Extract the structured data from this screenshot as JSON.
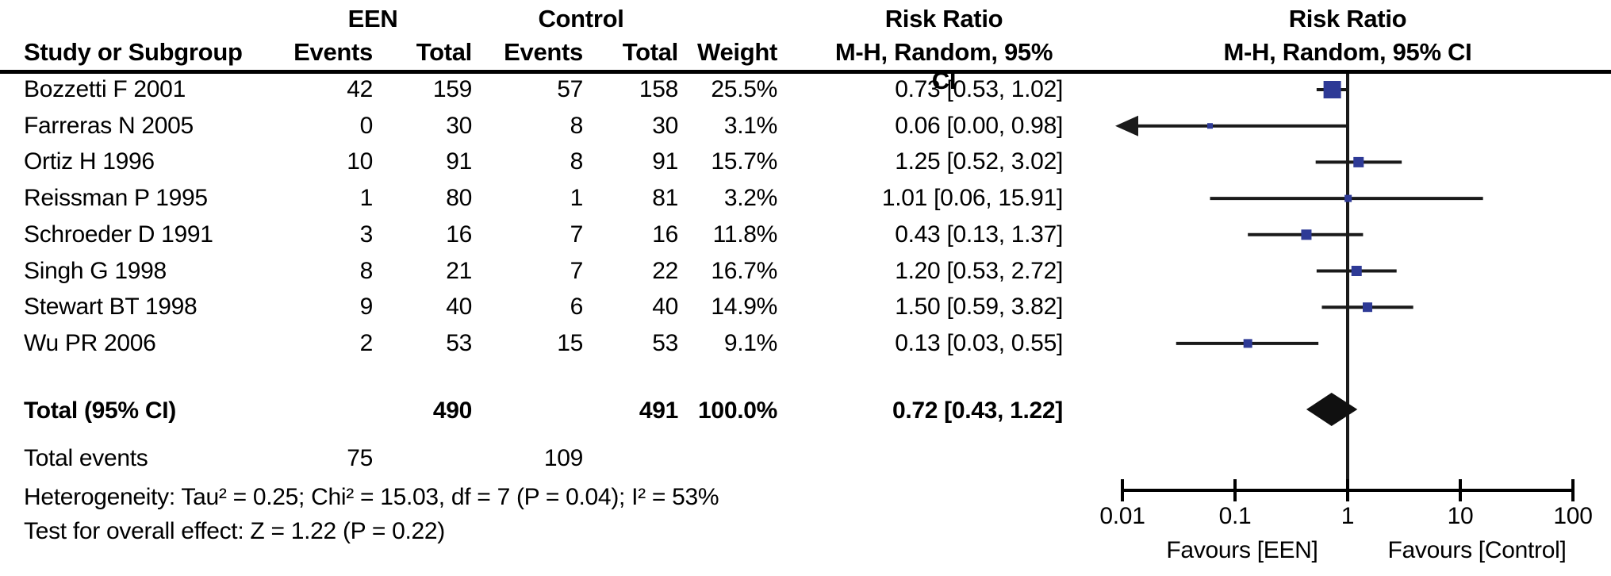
{
  "table": {
    "group1_header": "EEN",
    "group2_header": "Control",
    "col_headers": {
      "study": "Study or Subgroup",
      "events": "Events",
      "total": "Total",
      "weight": "Weight",
      "effect": "M-H, Random, 95% CI"
    },
    "effect_title": "Risk Ratio",
    "rows": [
      {
        "study": "Bozzetti F 2001",
        "e1": "42",
        "t1": "159",
        "e2": "57",
        "t2": "158",
        "weight": "25.5%",
        "rr": "0.73 [0.53, 1.02]"
      },
      {
        "study": "Farreras N 2005",
        "e1": "0",
        "t1": "30",
        "e2": "8",
        "t2": "30",
        "weight": "3.1%",
        "rr": "0.06 [0.00, 0.98]"
      },
      {
        "study": "Ortiz H 1996",
        "e1": "10",
        "t1": "91",
        "e2": "8",
        "t2": "91",
        "weight": "15.7%",
        "rr": "1.25 [0.52, 3.02]"
      },
      {
        "study": "Reissman P 1995",
        "e1": "1",
        "t1": "80",
        "e2": "1",
        "t2": "81",
        "weight": "3.2%",
        "rr": "1.01 [0.06, 15.91]"
      },
      {
        "study": "Schroeder D 1991",
        "e1": "3",
        "t1": "16",
        "e2": "7",
        "t2": "16",
        "weight": "11.8%",
        "rr": "0.43 [0.13, 1.37]"
      },
      {
        "study": "Singh G 1998",
        "e1": "8",
        "t1": "21",
        "e2": "7",
        "t2": "22",
        "weight": "16.7%",
        "rr": "1.20 [0.53, 2.72]"
      },
      {
        "study": "Stewart BT 1998",
        "e1": "9",
        "t1": "40",
        "e2": "6",
        "t2": "40",
        "weight": "14.9%",
        "rr": "1.50 [0.59, 3.82]"
      },
      {
        "study": "Wu PR 2006",
        "e1": "2",
        "t1": "53",
        "e2": "15",
        "t2": "53",
        "weight": "9.1%",
        "rr": "0.13 [0.03, 0.55]"
      }
    ],
    "total_row": {
      "label": "Total (95% CI)",
      "t1": "490",
      "t2": "491",
      "weight": "100.0%",
      "rr": "0.72 [0.43, 1.22]"
    },
    "total_events": {
      "label": "Total events",
      "e1": "75",
      "e2": "109"
    },
    "heterogeneity": "Heterogeneity: Tau² = 0.25; Chi² = 15.03, df = 7 (P = 0.04); I² = 53%",
    "overall_effect": "Test for overall effect: Z = 1.22 (P = 0.22)"
  },
  "chart_data": {
    "type": "forest",
    "effect_measure": "Risk Ratio",
    "model": "M-H, Random, 95% CI",
    "x_scale": "log10",
    "x_range": [
      0.01,
      100
    ],
    "x_ticks": [
      "0.01",
      "0.1",
      "1",
      "10",
      "100"
    ],
    "null_line": 1,
    "studies": [
      {
        "name": "Bozzetti F 2001",
        "rr": 0.73,
        "ci_low": 0.53,
        "ci_high": 1.02,
        "weight_pct": 25.5,
        "marker_size": 22,
        "arrow_low": false
      },
      {
        "name": "Farreras N 2005",
        "rr": 0.06,
        "ci_low": 0.0,
        "ci_high": 0.98,
        "weight_pct": 3.1,
        "marker_size": 7,
        "arrow_low": true
      },
      {
        "name": "Ortiz H 1996",
        "rr": 1.25,
        "ci_low": 0.52,
        "ci_high": 3.02,
        "weight_pct": 15.7,
        "marker_size": 13,
        "arrow_low": false
      },
      {
        "name": "Reissman P 1995",
        "rr": 1.01,
        "ci_low": 0.06,
        "ci_high": 15.91,
        "weight_pct": 3.2,
        "marker_size": 9,
        "arrow_low": false
      },
      {
        "name": "Schroeder D 1991",
        "rr": 0.43,
        "ci_low": 0.13,
        "ci_high": 1.37,
        "weight_pct": 11.8,
        "marker_size": 13,
        "arrow_low": false
      },
      {
        "name": "Singh G 1998",
        "rr": 1.2,
        "ci_low": 0.53,
        "ci_high": 2.72,
        "weight_pct": 16.7,
        "marker_size": 13,
        "arrow_low": false
      },
      {
        "name": "Stewart BT 1998",
        "rr": 1.5,
        "ci_low": 0.59,
        "ci_high": 3.82,
        "weight_pct": 14.9,
        "marker_size": 12,
        "arrow_low": false
      },
      {
        "name": "Wu PR 2006",
        "rr": 0.13,
        "ci_low": 0.03,
        "ci_high": 0.55,
        "weight_pct": 9.1,
        "marker_size": 11,
        "arrow_low": false
      }
    ],
    "total": {
      "rr": 0.72,
      "ci_low": 0.43,
      "ci_high": 1.22
    },
    "favours_left": "Favours [EEN]",
    "favours_right": "Favours [Control]",
    "colors": {
      "marker": "#2e3a96",
      "diamond": "#101010",
      "line": "#1a1a1a",
      "axis": "#000000"
    }
  }
}
